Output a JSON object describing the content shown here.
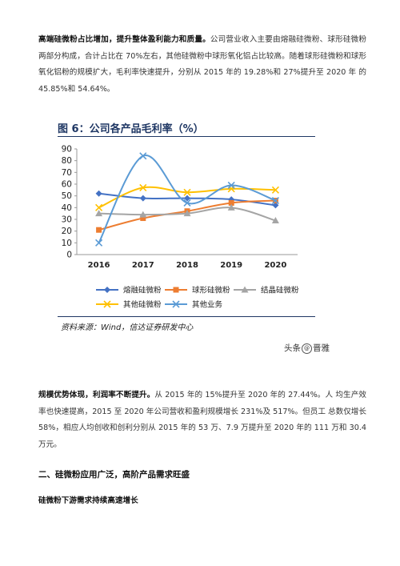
{
  "intro": {
    "lead": "高端硅微粉占比增加，提升整体盈利能力和质量。",
    "text": "公司营业收入主要由熔融硅微粉、球形硅微粉两部分构成，合计占比在 70%左右，其他硅微粉中球形氧化铝占比较高。随着球形硅微粉和球形 氧化铝粉的规模扩大，毛利率快速提升，分别从 2015 年的 19.28%和 27%提升至 2020 年 的 45.85%和 54.64%。"
  },
  "figure": {
    "title": "图 6：公司各产品毛利率（%）",
    "source": "资料来源：Wind，信达证券研发中心"
  },
  "chart_data": {
    "type": "line",
    "title": "图 6：公司各产品毛利率（%）",
    "categories": [
      "2016",
      "2017",
      "2018",
      "2019",
      "2020"
    ],
    "ylim": [
      0,
      90
    ],
    "yticks": [
      0,
      10,
      20,
      30,
      40,
      50,
      60,
      70,
      80,
      90
    ],
    "grid": false,
    "legend_position": "bottom",
    "series": [
      {
        "name": "熔融硅微粉",
        "color": "#4472c4",
        "marker": "diamond",
        "values": [
          52,
          48,
          48,
          47,
          42
        ]
      },
      {
        "name": "球形硅微粉",
        "color": "#ed7d31",
        "marker": "square",
        "values": [
          21,
          31,
          37,
          44,
          46
        ]
      },
      {
        "name": "结晶硅微粉",
        "color": "#a5a5a5",
        "marker": "triangle",
        "values": [
          35,
          34,
          35,
          40,
          29
        ]
      },
      {
        "name": "其他硅微粉",
        "color": "#ffc000",
        "marker": "x",
        "values": [
          40,
          57,
          53,
          56,
          55
        ]
      },
      {
        "name": "其他业务",
        "color": "#5b9bd5",
        "marker": "x",
        "values": [
          10,
          84,
          44,
          59,
          46
        ]
      }
    ]
  },
  "watermark": {
    "prefix": "头条",
    "circle": "@",
    "name": "晋雅"
  },
  "para2": {
    "lead": "规模优势体现，利润率不断提升。",
    "text": "从 2015 年的 15%提升至 2020 年的 27.44%。人 均生产效率也快速提高，2015 至 2020 年公司营收和盈利规模增长 231%及 517%。但员工 总数仅增长 58%，相应人均创收和创利分别从 2015 年的 53 万、7.9 万提升至 2020 年的 111 万和 30.4 万元。"
  },
  "heading2": "二、硅微粉应用广泛，高阶产品需求旺盛",
  "heading3": "硅微粉下游需求持续高速增长"
}
